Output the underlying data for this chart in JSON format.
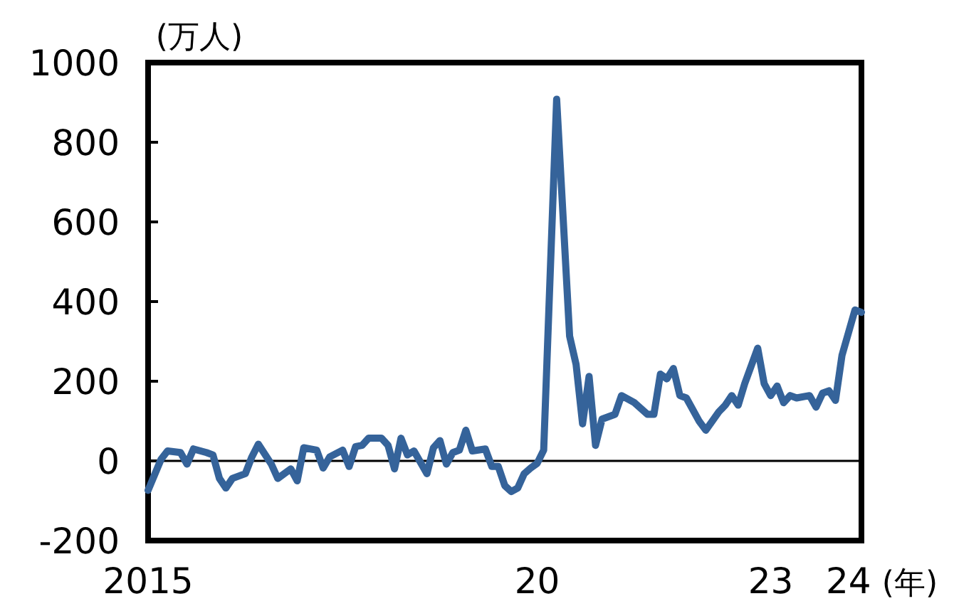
{
  "chart_data": {
    "type": "line",
    "ylabel": "(万人)",
    "xlabel": "(年)",
    "x": [
      "2015-01",
      "2015-03",
      "2015-04",
      "2015-06",
      "2015-07",
      "2015-08",
      "2015-10",
      "2015-11",
      "2015-12",
      "2016-01",
      "2016-02",
      "2016-04",
      "2016-05",
      "2016-06",
      "2016-08",
      "2016-09",
      "2016-11",
      "2016-12",
      "2017-01",
      "2017-03",
      "2017-04",
      "2017-05",
      "2017-07",
      "2017-08",
      "2017-09",
      "2017-10",
      "2017-11",
      "2018-01",
      "2018-02",
      "2018-03",
      "2018-04",
      "2018-05",
      "2018-06",
      "2018-08",
      "2018-09",
      "2018-10",
      "2018-11",
      "2018-12",
      "2019-01",
      "2019-02",
      "2019-03",
      "2019-05",
      "2019-06",
      "2019-07",
      "2019-08",
      "2019-09",
      "2019-10",
      "2019-11",
      "2019-12",
      "2020-01",
      "2020-02",
      "2020-04",
      "2020-06",
      "2020-07",
      "2020-08",
      "2020-09",
      "2020-10",
      "2020-11",
      "2021-01",
      "2021-02",
      "2021-04",
      "2021-06",
      "2021-07",
      "2021-08",
      "2021-09",
      "2021-10",
      "2021-11",
      "2021-12",
      "2022-02",
      "2022-03",
      "2022-05",
      "2022-06",
      "2022-07",
      "2022-08",
      "2022-09",
      "2022-11",
      "2022-12",
      "2023-01",
      "2023-02",
      "2023-03",
      "2023-04",
      "2023-05",
      "2023-07",
      "2023-08",
      "2023-09",
      "2023-10",
      "2023-11",
      "2023-12",
      "2024-02",
      "2024-03"
    ],
    "series": [
      {
        "color": "#35639a",
        "values": [
          -74,
          4,
          25,
          21,
          -8,
          30,
          21,
          15,
          -44,
          -68,
          -44,
          -32,
          10,
          42,
          -8,
          -44,
          -20,
          -50,
          33,
          27,
          -18,
          10,
          27,
          -14,
          36,
          39,
          57,
          57,
          39,
          -20,
          57,
          15,
          25,
          -32,
          33,
          51,
          -8,
          21,
          27,
          77,
          25,
          30,
          -14,
          -14,
          -62,
          -77,
          -68,
          -32,
          -18,
          -6,
          27,
          908,
          313,
          242,
          93,
          212,
          39,
          105,
          117,
          164,
          146,
          117,
          117,
          218,
          206,
          232,
          164,
          158,
          99,
          77,
          123,
          140,
          164,
          140,
          194,
          283,
          194,
          164,
          188,
          146,
          164,
          158,
          164,
          135,
          170,
          176,
          152,
          265,
          379,
          373
        ]
      }
    ],
    "xlim": [
      "2015-01",
      "2024-03"
    ],
    "xticks": [
      {
        "value": "2015-01",
        "label": "2015"
      },
      {
        "value": "2020-01",
        "label": "20"
      },
      {
        "value": "2023-01",
        "label": "23"
      },
      {
        "value": "2024-01",
        "label": "24"
      }
    ],
    "ylim": [
      -200,
      1000
    ],
    "yticks": [
      -200,
      0,
      200,
      400,
      600,
      800,
      1000
    ],
    "ref_lines": [
      {
        "axis": "y",
        "value": 0,
        "color": "#000000"
      }
    ],
    "marker": "none",
    "line_style": "solid"
  }
}
